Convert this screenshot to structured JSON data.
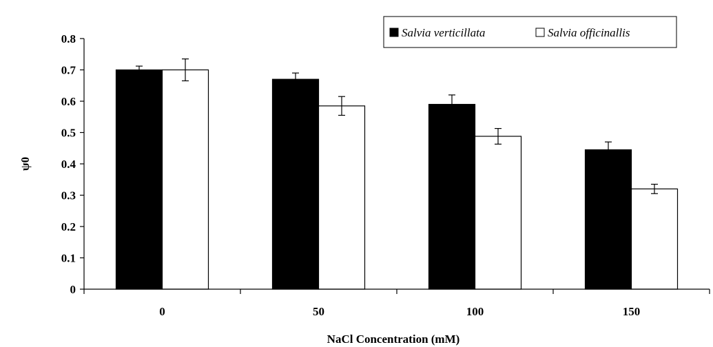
{
  "chart_data": {
    "type": "bar",
    "title": "",
    "xlabel": "NaCl Concentration (mM)",
    "ylabel": "ψ0",
    "categories": [
      "0",
      "50",
      "100",
      "150"
    ],
    "series": [
      {
        "name": "Salvia verticillata",
        "color": "#000000",
        "values": [
          0.7,
          0.67,
          0.59,
          0.445
        ],
        "errors": [
          0.012,
          0.02,
          0.03,
          0.025
        ]
      },
      {
        "name": "Salvia officinallis",
        "color": "#ffffff",
        "values": [
          0.7,
          0.585,
          0.488,
          0.32
        ],
        "errors": [
          0.035,
          0.03,
          0.025,
          0.015
        ]
      }
    ],
    "ylim": [
      0,
      0.8
    ],
    "yticks": [
      "0",
      "0.1",
      "0.2",
      "0.3",
      "0.4",
      "0.5",
      "0.6",
      "0.7",
      "0.8"
    ],
    "grid": false,
    "legend_position": "top-right"
  }
}
